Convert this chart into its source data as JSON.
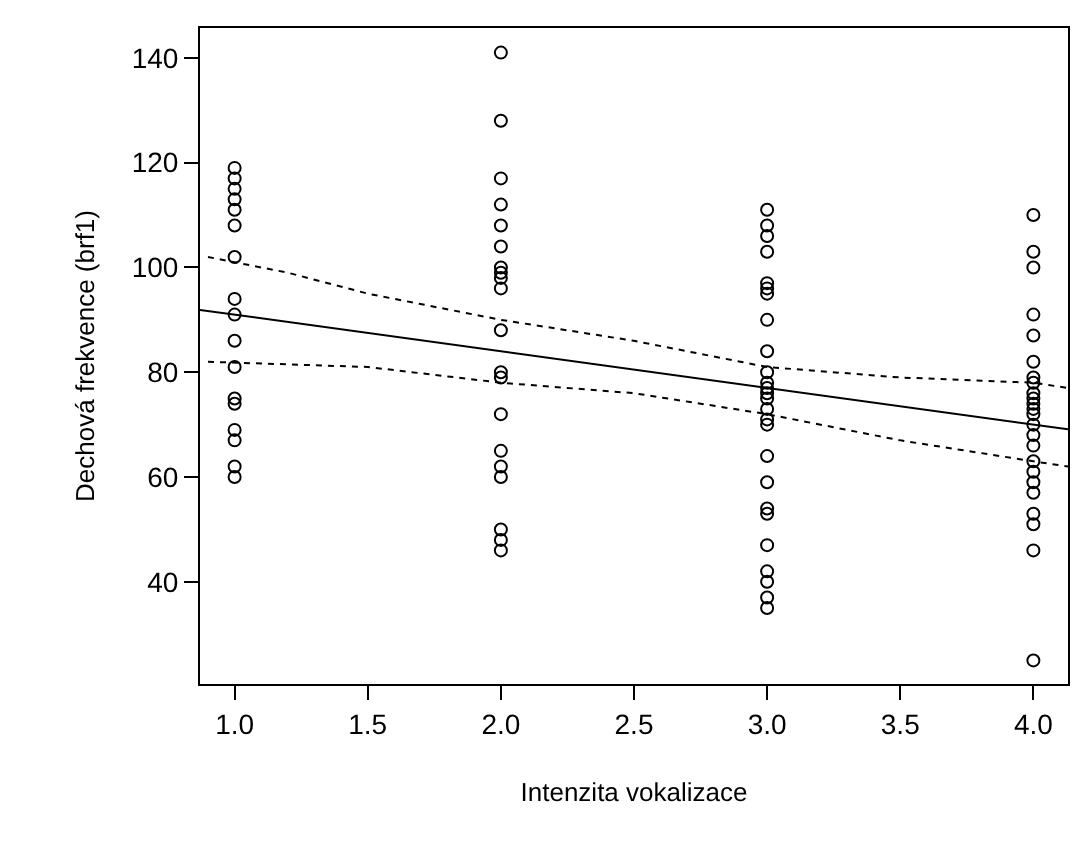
{
  "chart_data": {
    "type": "scatter",
    "xlabel": "Intenzita vokalizace",
    "ylabel": "Dechová frekvence (brf1)",
    "xlim": [
      0.87,
      4.13
    ],
    "ylim": [
      20.5,
      145.7
    ],
    "xticks": [
      {
        "value": 1,
        "label": "1.0"
      },
      {
        "value": 1.5,
        "label": "1.5"
      },
      {
        "value": 2,
        "label": "2.0"
      },
      {
        "value": 2.5,
        "label": "2.5"
      },
      {
        "value": 3,
        "label": "3.0"
      },
      {
        "value": 3.5,
        "label": "3.5"
      },
      {
        "value": 4,
        "label": "4.0"
      }
    ],
    "yticks": [
      40,
      60,
      80,
      100,
      120,
      140
    ],
    "marker": "circle",
    "series": [
      {
        "color": "#000000",
        "x": [
          1,
          1,
          1,
          1,
          1,
          1,
          1,
          1,
          1,
          1,
          1,
          1,
          1,
          1,
          1,
          1,
          1,
          2,
          2,
          2,
          2,
          2,
          2,
          2,
          2,
          2,
          2,
          2,
          2,
          2,
          2,
          2,
          2,
          2,
          2,
          2,
          2,
          3,
          3,
          3,
          3,
          3,
          3,
          3,
          3,
          3,
          3,
          3,
          3,
          3,
          3,
          3,
          3,
          3,
          3,
          3,
          3,
          3,
          3,
          3,
          3,
          3,
          3,
          4,
          4,
          4,
          4,
          4,
          4,
          4,
          4,
          4,
          4,
          4,
          4,
          4,
          4,
          4,
          4,
          4,
          4,
          4,
          4,
          4,
          4,
          4,
          4
        ],
        "values": [
          119,
          117,
          115,
          113,
          111,
          108,
          102,
          94,
          91,
          86,
          81,
          75,
          74,
          69,
          67,
          62,
          60,
          141,
          128,
          117,
          112,
          108,
          104,
          100,
          99,
          98,
          96,
          88,
          80,
          79,
          72,
          65,
          62,
          60,
          50,
          48,
          46,
          111,
          108,
          106,
          103,
          97,
          96,
          95,
          90,
          84,
          80,
          78,
          77,
          76,
          75,
          73,
          71,
          70,
          64,
          59,
          54,
          53,
          47,
          42,
          40,
          37,
          35,
          110,
          103,
          100,
          91,
          87,
          82,
          79,
          78,
          76,
          75,
          74,
          73,
          72,
          70,
          68,
          66,
          63,
          61,
          59,
          57,
          53,
          51,
          46,
          25
        ]
      },
      {
        "type": "line",
        "color": "#000000",
        "line_style": "solid",
        "marker": "none",
        "x": [
          0.87,
          4.13
        ],
        "values": [
          91.9,
          69.1
        ]
      },
      {
        "type": "line",
        "color": "#000000",
        "line_style": "dotted",
        "marker": "none",
        "x": [
          0.9,
          1.2,
          1.5,
          2,
          2.5,
          3,
          3.5,
          4,
          4.13
        ],
        "values": [
          102,
          99,
          95,
          90,
          86,
          81,
          79,
          78,
          77
        ]
      },
      {
        "type": "line",
        "color": "#000000",
        "line_style": "dotted",
        "marker": "none",
        "x": [
          0.9,
          1.5,
          2,
          2.5,
          3,
          3.5,
          4,
          4.13
        ],
        "values": [
          82,
          81,
          78,
          76,
          72,
          67,
          63,
          62
        ]
      }
    ]
  }
}
